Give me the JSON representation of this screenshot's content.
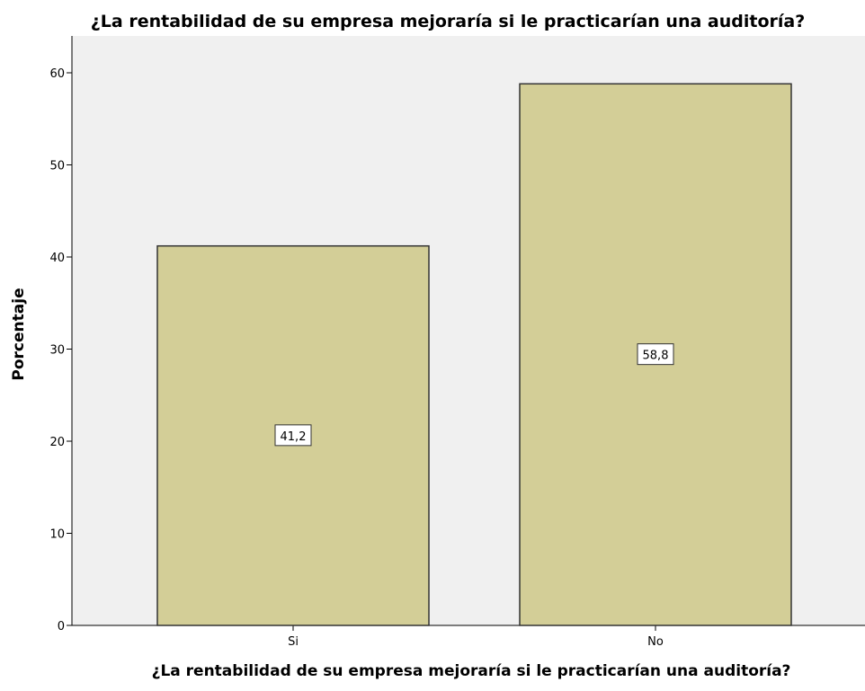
{
  "chart_data": {
    "type": "bar",
    "title": "¿La rentabilidad de su empresa mejoraría si le practicarían una auditoría?",
    "x_label": "¿La rentabilidad de su empresa mejoraría si le practicarían una auditoría?",
    "y_label": "Porcentaje",
    "categories": [
      "Si",
      "No"
    ],
    "values": [
      41.2,
      58.8
    ],
    "value_labels": [
      "41,2",
      "58,8"
    ],
    "color": "#d3ce97",
    "ylim": [
      0,
      64
    ],
    "yticks": [
      0,
      10,
      20,
      30,
      40,
      50,
      60
    ],
    "grid": false
  }
}
